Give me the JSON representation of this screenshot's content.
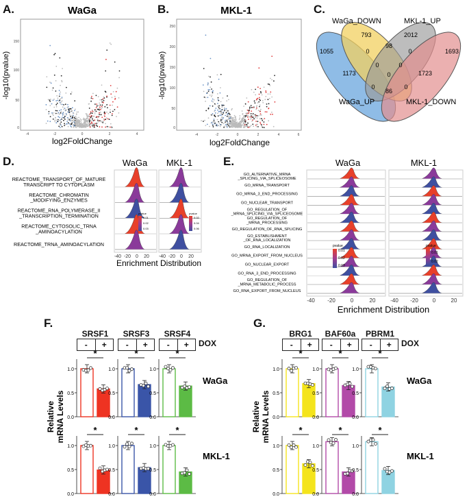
{
  "panels": {
    "A": {
      "label": "A.",
      "title": "WaGa",
      "ylabel": "-log10(pvalue)",
      "xlabel": "log2FoldChange",
      "xticks": [
        "-4",
        "-2",
        "0",
        "2",
        "4"
      ],
      "yticks": [
        "0",
        "50",
        "100",
        "150"
      ]
    },
    "B": {
      "label": "B.",
      "title": "MKL-1",
      "ylabel": "-log10(pvalue)",
      "xlabel": "log2FoldChange",
      "xticks": [
        "-4",
        "-2",
        "0",
        "2",
        "4",
        "6"
      ],
      "yticks": [
        "0",
        "50",
        "100",
        "150",
        "200",
        "250"
      ]
    },
    "C": {
      "label": "C.",
      "sets": {
        "waga_down": "WaGa_DOWN",
        "mkl_up": "MKL-1_UP",
        "waga_up": "WaGa_UP",
        "mkl_down": "MKL-1_DOWN"
      },
      "counts": {
        "n793": "793",
        "n2012": "2012",
        "n1055": "1055",
        "n1693": "1693",
        "n0a": "0",
        "n98": "98",
        "n0b": "0",
        "n1173": "1173",
        "n0c": "0",
        "n0d": "0",
        "n1723": "1723",
        "n0e": "0",
        "n0f": "0",
        "n86": "86",
        "n0g": "0"
      }
    },
    "D": {
      "label": "D.",
      "col1": "WaGa",
      "col2": "MKL-1",
      "xlabel": "Enrichment Distribution",
      "terms": [
        "REACTOME_TRANSPORT_OF_MATURE\nTRANSCRIPT TO CYTOPLASM",
        "REACTOME_CHROMATIN\n_MODIFYING_ENZYMES",
        "REACTOME_RNA_POLYMERASE_II\n_TRANSCRIPTION_TERMINATION",
        "REACTOME_CYTOSOLIC_TRNA\n_AMINOACYLATION",
        "REACTOME_TRNA_AMINOACYLATION"
      ],
      "xticks": [
        "-40",
        "-20",
        "0",
        "20"
      ],
      "legend1": {
        "title": "pvalue",
        "ticks": [
          "0.01",
          "0.02",
          "0.03"
        ]
      },
      "legend2": {
        "title": "pvalue",
        "ticks": [
          "0.02",
          "0.04",
          "0.06"
        ]
      }
    },
    "E": {
      "label": "E.",
      "col1": "WaGa",
      "col2": "MKL-1",
      "xlabel": "Enrichment Distribution",
      "terms": [
        "GO_ALTERNATIVE_MRNA\n_SPLICING_VIA_SPLICEOSOME",
        "GO_MRNA_TRANSPORT",
        "GO_MRNA_3_END_PROCESSING",
        "GO_NUCLEAR_TRANSPORT",
        "GO_REGULATION_OF\n_MRNA_SPLICING_VIA_SPLICEOSOME",
        "GO_REGULATION_OF\n_MRNA_PROCESSING",
        "GO_REGULATION_OF_RNA_SPLICING",
        "GO_ESTABLISHMENT\n_OF_RNA_LOCALIZATION",
        "GO_RNA_LOCALIZATION",
        "GO_MRNA_EXPORT_FROM_NUCLEUS",
        "GO_NUCLEAR_EXPORT",
        "GO_RNA_3_END_PROCESSING",
        "GO_REGULATION_OF\n_MRNA_METABOLIC_PROCESS",
        "GO_RNA_EXPORT_FROM_NUCLEUS"
      ],
      "xticks": [
        "-40",
        "-20",
        "0",
        "20"
      ],
      "legend1": {
        "title": "pvalue",
        "ticks": [
          "0.01",
          "0.02",
          "0.03"
        ]
      },
      "legend2": {
        "title": "pvalue",
        "ticks": [
          "0.01",
          "0.02"
        ]
      }
    },
    "F": {
      "label": "F.",
      "genes": [
        "SRSF1",
        "SRSF3",
        "SRSF4"
      ],
      "dox": "DOX",
      "minus": "-",
      "plus": "+",
      "ylabel": "Relative\nmRNA Levels",
      "row1": "WaGa",
      "row2": "MKL-1",
      "sig": "*",
      "yticks": [
        "0.0",
        "0.5",
        "1.0"
      ]
    },
    "G": {
      "label": "G.",
      "genes": [
        "BRG1",
        "BAF60a",
        "PBRM1"
      ],
      "dox": "DOX",
      "minus": "-",
      "plus": "+",
      "ylabel": "Relative\nmRNA Levels",
      "row1": "WaGa",
      "row2": "MKL-1",
      "sig": "*",
      "yticks": [
        "0.0",
        "0.5",
        "1.0"
      ]
    }
  },
  "colors": {
    "red": "#ee3322",
    "blue": "#3a55a8",
    "green": "#5cbb45",
    "yellow": "#f4e41c",
    "magenta": "#b24aa8",
    "cyan": "#8fd3e2",
    "ridge_red": "#e8402a",
    "ridge_purple": "#8a3a9a",
    "ridge_blue": "#3f4fa0"
  },
  "chart_data": [
    {
      "type": "bar",
      "title": "F WaGa",
      "categories": [
        "SRSF1 -",
        "SRSF1 +",
        "SRSF3 -",
        "SRSF3 +",
        "SRSF4 -",
        "SRSF4 +"
      ],
      "values": [
        1.0,
        0.58,
        1.0,
        0.67,
        1.0,
        0.64
      ],
      "ylim": [
        0,
        1.2
      ]
    },
    {
      "type": "bar",
      "title": "F MKL-1",
      "categories": [
        "SRSF1 -",
        "SRSF1 +",
        "SRSF3 -",
        "SRSF3 +",
        "SRSF4 -",
        "SRSF4 +"
      ],
      "values": [
        1.0,
        0.49,
        1.0,
        0.54,
        1.0,
        0.45
      ],
      "ylim": [
        0,
        1.2
      ]
    },
    {
      "type": "bar",
      "title": "G WaGa",
      "categories": [
        "BRG1 -",
        "BRG1 +",
        "BAF60a -",
        "BAF60a +",
        "PBRM1 -",
        "PBRM1 +"
      ],
      "values": [
        1.0,
        0.69,
        1.0,
        0.65,
        1.0,
        0.62
      ],
      "ylim": [
        0,
        1.2
      ]
    },
    {
      "type": "bar",
      "title": "G MKL-1",
      "categories": [
        "BRG1 -",
        "BRG1 +",
        "BAF60a -",
        "BAF60a +",
        "PBRM1 -",
        "PBRM1 +"
      ],
      "values": [
        1.0,
        0.62,
        1.08,
        0.45,
        1.08,
        0.48
      ],
      "ylim": [
        0,
        1.2
      ]
    }
  ]
}
